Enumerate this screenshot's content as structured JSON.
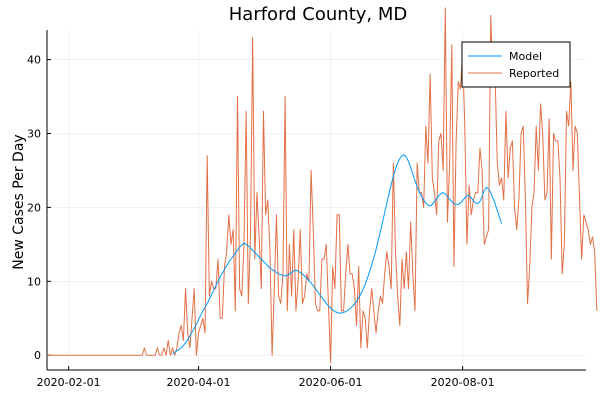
{
  "chart_data": {
    "type": "line",
    "title": "Harford County, MD",
    "xlabel": "",
    "ylabel": "New Cases Per Day",
    "xlim": [
      "2020-01-22",
      "2020-09-27"
    ],
    "ylim": [
      -2,
      44
    ],
    "x_ticks": [
      "2020-02-01",
      "2020-04-01",
      "2020-06-01",
      "2020-08-01"
    ],
    "y_ticks": [
      0,
      10,
      20,
      30,
      40
    ],
    "grid": true,
    "legend_position": "top-right",
    "colors": {
      "Model": "#009AFA",
      "Reported": "#E26F46"
    },
    "series": [
      {
        "name": "Model",
        "start_date": "2020-03-20",
        "values": [
          0.2,
          0.4,
          0.6,
          0.8,
          1.0,
          1.3,
          1.7,
          2.1,
          2.6,
          3.1,
          3.6,
          4.2,
          4.8,
          5.4,
          6.0,
          6.5,
          7.0,
          7.6,
          8.2,
          8.8,
          9.4,
          10.0,
          10.6,
          11.1,
          11.6,
          12.1,
          12.6,
          13.0,
          13.4,
          13.8,
          14.2,
          14.6,
          14.9,
          15.2,
          15.0,
          14.8,
          14.5,
          14.2,
          13.9,
          13.6,
          13.3,
          13.0,
          12.7,
          12.4,
          12.1,
          11.8,
          11.6,
          11.4,
          11.2,
          11.0,
          10.9,
          10.8,
          10.7,
          10.8,
          11.0,
          11.2,
          11.4,
          11.5,
          11.4,
          11.2,
          11.0,
          10.7,
          10.4,
          10.1,
          9.8,
          9.4,
          9.0,
          8.6,
          8.2,
          7.8,
          7.4,
          7.0,
          6.7,
          6.4,
          6.1,
          5.9,
          5.8,
          5.7,
          5.7,
          5.8,
          5.9,
          6.1,
          6.3,
          6.6,
          6.9,
          7.3,
          7.8,
          8.3,
          8.9,
          9.6,
          10.4,
          11.3,
          12.2,
          13.2,
          14.3,
          15.5,
          16.7,
          18.0,
          19.3,
          20.6,
          21.9,
          23.1,
          24.2,
          25.2,
          26.0,
          26.6,
          27.0,
          27.1,
          26.8,
          26.2,
          25.4,
          24.5,
          23.6,
          22.8,
          22.1,
          21.5,
          21.0,
          20.6,
          20.3,
          20.2,
          20.4,
          20.8,
          21.2,
          21.6,
          21.9,
          22.0,
          21.8,
          21.5,
          21.1,
          20.8,
          20.5,
          20.4,
          20.4,
          20.6,
          20.9,
          21.3,
          21.6,
          21.6,
          21.3,
          20.9,
          20.6,
          20.5,
          20.8,
          21.5,
          22.3,
          22.7,
          22.5,
          22.0,
          21.3,
          20.5,
          19.6,
          18.7,
          17.8
        ]
      },
      {
        "name": "Reported",
        "start_date": "2020-01-22",
        "values": [
          0,
          0,
          0,
          0,
          0,
          0,
          0,
          0,
          0,
          0,
          0,
          0,
          0,
          0,
          0,
          0,
          0,
          0,
          0,
          0,
          0,
          0,
          0,
          0,
          0,
          0,
          0,
          0,
          0,
          0,
          0,
          0,
          0,
          0,
          0,
          0,
          0,
          0,
          0,
          0,
          0,
          0,
          0,
          0,
          0,
          1,
          0,
          0,
          0,
          0,
          0,
          1,
          0,
          0,
          1,
          0,
          2,
          0,
          1,
          0,
          1,
          3,
          4,
          2,
          9,
          3,
          1,
          5,
          9,
          0,
          3,
          4,
          5,
          3,
          27,
          8,
          10,
          9,
          9,
          13,
          5,
          5,
          12,
          14,
          19,
          15,
          17,
          6,
          35,
          9,
          8,
          15,
          33,
          7,
          16,
          43,
          13,
          22,
          16,
          9,
          33,
          19,
          21,
          14,
          0,
          9,
          19,
          8,
          7,
          11,
          35,
          6,
          15,
          8,
          17,
          6,
          10,
          17,
          7,
          8,
          11,
          10,
          25,
          17,
          7,
          6,
          6,
          13,
          13,
          15,
          7,
          -1,
          12,
          9,
          19,
          19,
          6,
          6,
          11,
          15,
          11,
          11,
          9,
          4,
          12,
          1,
          6,
          5,
          1,
          6,
          9,
          6,
          3,
          6,
          8,
          7,
          11,
          14,
          12,
          9,
          26,
          14,
          8,
          4,
          13,
          9,
          14,
          9,
          18,
          11,
          6,
          26,
          22,
          22,
          20,
          31,
          26,
          38,
          24,
          22,
          19,
          29,
          30,
          25,
          47,
          18,
          26,
          42,
          12,
          29,
          37,
          36,
          41,
          31,
          15,
          23,
          19,
          21,
          22,
          22,
          28,
          25,
          15,
          16,
          17,
          46,
          37,
          38,
          26,
          23,
          24,
          21,
          33,
          24,
          28,
          29,
          20,
          17,
          21,
          30,
          31,
          21,
          7,
          12,
          20,
          22,
          31,
          25,
          34,
          30,
          21,
          22,
          32,
          13,
          30,
          29,
          29,
          24,
          11,
          15,
          33,
          31,
          37,
          25,
          31,
          30,
          21,
          13,
          19,
          18,
          17,
          15,
          16,
          14,
          6
        ]
      }
    ]
  }
}
